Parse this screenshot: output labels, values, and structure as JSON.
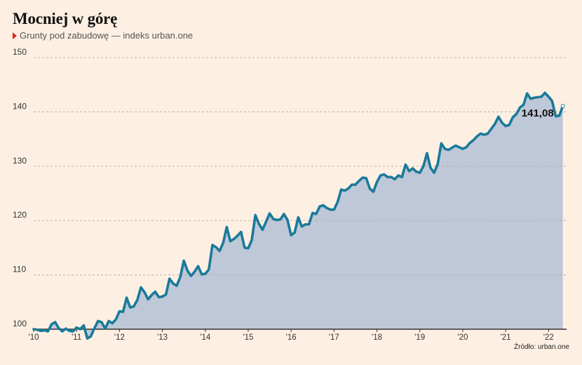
{
  "title": "Mocniej w górę",
  "subtitle": "Grunty pod zabudowę — indeks urban.one",
  "source": "Źródło: urban.one",
  "colors": {
    "background": "#fdf0e3",
    "line": "#1a7a9a",
    "area": "#bfc8d8",
    "grid": "#b8b0a8",
    "marker": "#d9261c"
  },
  "chart_data": {
    "type": "area",
    "ylim": [
      100,
      150
    ],
    "yticks": [
      100,
      110,
      120,
      130,
      140,
      150
    ],
    "xlim": [
      2010,
      2022.42
    ],
    "xticks": [
      {
        "x": 2010,
        "label": "'10"
      },
      {
        "x": 2011,
        "label": "'11"
      },
      {
        "x": 2012,
        "label": "'12"
      },
      {
        "x": 2013,
        "label": "'13"
      },
      {
        "x": 2014,
        "label": "'14"
      },
      {
        "x": 2015,
        "label": "'15"
      },
      {
        "x": 2016,
        "label": "'16"
      },
      {
        "x": 2017,
        "label": "'17"
      },
      {
        "x": 2018,
        "label": "'18"
      },
      {
        "x": 2019,
        "label": "'19"
      },
      {
        "x": 2020,
        "label": "'20"
      },
      {
        "x": 2021,
        "label": "'21"
      },
      {
        "x": 2022,
        "label": "'22"
      }
    ],
    "grid": true,
    "annotation": {
      "label": "141,08",
      "value": 141.08
    },
    "series": [
      {
        "start": 2010,
        "step_months": 1,
        "values": [
          100.0,
          99.9,
          99.7,
          99.8,
          99.6,
          100.9,
          101.3,
          100.2,
          99.6,
          100.1,
          99.7,
          99.6,
          100.3,
          100.0,
          100.7,
          98.3,
          98.7,
          100.2,
          101.5,
          101.3,
          100.1,
          101.5,
          101.1,
          101.8,
          103.3,
          103.2,
          105.8,
          104.0,
          104.2,
          105.4,
          107.7,
          106.8,
          105.5,
          106.3,
          106.9,
          105.9,
          106.0,
          106.4,
          109.3,
          108.4,
          108.0,
          109.6,
          112.6,
          110.8,
          109.8,
          110.6,
          111.6,
          110.1,
          110.2,
          111.0,
          115.5,
          115.1,
          114.4,
          115.9,
          118.8,
          116.2,
          116.6,
          117.2,
          117.9,
          115.0,
          114.9,
          116.4,
          121.0,
          119.4,
          118.3,
          119.8,
          121.3,
          120.3,
          120.1,
          120.2,
          121.2,
          120.1,
          117.3,
          117.8,
          120.6,
          118.9,
          119.3,
          119.3,
          121.4,
          121.2,
          122.6,
          122.8,
          122.3,
          122.0,
          122.0,
          123.4,
          125.7,
          125.5,
          125.9,
          126.6,
          126.6,
          127.3,
          127.9,
          127.8,
          125.9,
          125.3,
          127.1,
          128.3,
          128.5,
          128.0,
          128.0,
          127.6,
          128.3,
          128.0,
          130.3,
          129.1,
          129.6,
          129.0,
          128.8,
          130.0,
          132.4,
          129.7,
          128.8,
          130.4,
          134.2,
          133.2,
          133.0,
          133.4,
          133.8,
          133.5,
          133.2,
          133.5,
          134.3,
          134.8,
          135.5,
          136.0,
          135.8,
          136.0,
          136.9,
          137.8,
          139.1,
          138.0,
          137.4,
          137.6,
          139.0,
          139.6,
          140.8,
          141.3,
          143.4,
          142.4,
          142.6,
          142.7,
          142.8,
          143.5,
          142.8,
          142.0,
          139.2,
          139.3,
          141.08
        ]
      }
    ]
  }
}
